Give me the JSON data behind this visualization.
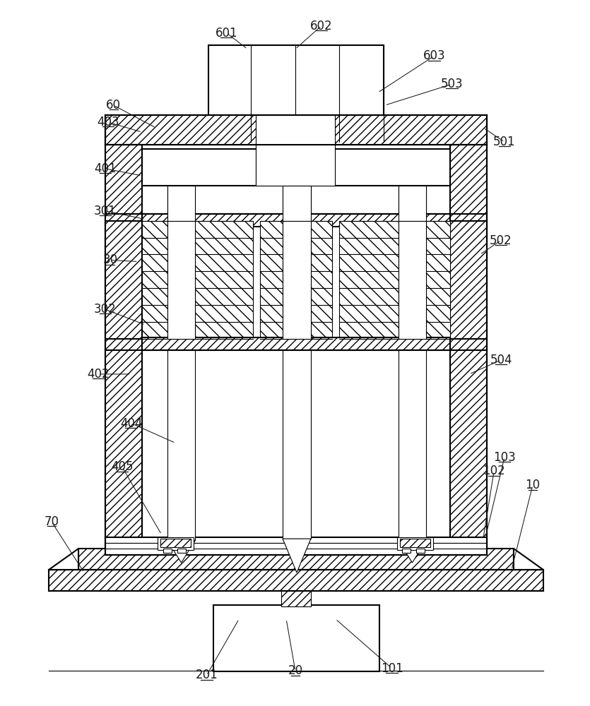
{
  "bg_color": "#ffffff",
  "line_color": "#000000",
  "lw_main": 1.5,
  "lw_thin": 0.8,
  "label_fs": 12,
  "underlined_labels": [
    "10",
    "20",
    "30",
    "60",
    "70",
    "101",
    "102",
    "103",
    "201",
    "301",
    "302",
    "401",
    "402",
    "403",
    "404",
    "405",
    "501",
    "502",
    "503",
    "504",
    "601",
    "602",
    "603"
  ],
  "leaders": [
    [
      "601",
      320,
      45,
      350,
      68
    ],
    [
      "602",
      455,
      35,
      418,
      68
    ],
    [
      "603",
      615,
      78,
      535,
      130
    ],
    [
      "60",
      160,
      148,
      220,
      180
    ],
    [
      "403",
      152,
      172,
      200,
      186
    ],
    [
      "503",
      640,
      118,
      545,
      148
    ],
    [
      "501",
      715,
      200,
      685,
      180
    ],
    [
      "401",
      148,
      238,
      200,
      248
    ],
    [
      "301",
      148,
      298,
      205,
      310
    ],
    [
      "30",
      155,
      368,
      195,
      370
    ],
    [
      "302",
      148,
      438,
      205,
      460
    ],
    [
      "502",
      710,
      340,
      680,
      360
    ],
    [
      "402",
      138,
      530,
      185,
      530
    ],
    [
      "504",
      710,
      510,
      665,
      530
    ],
    [
      "404",
      185,
      600,
      248,
      628
    ],
    [
      "405",
      172,
      662,
      228,
      758
    ],
    [
      "103",
      715,
      648,
      688,
      762
    ],
    [
      "102",
      700,
      668,
      685,
      762
    ],
    [
      "10",
      755,
      688,
      725,
      808
    ],
    [
      "70",
      72,
      740,
      118,
      812
    ],
    [
      "101",
      555,
      948,
      475,
      878
    ],
    [
      "20",
      418,
      952,
      405,
      878
    ],
    [
      "201",
      292,
      958,
      338,
      878
    ]
  ]
}
